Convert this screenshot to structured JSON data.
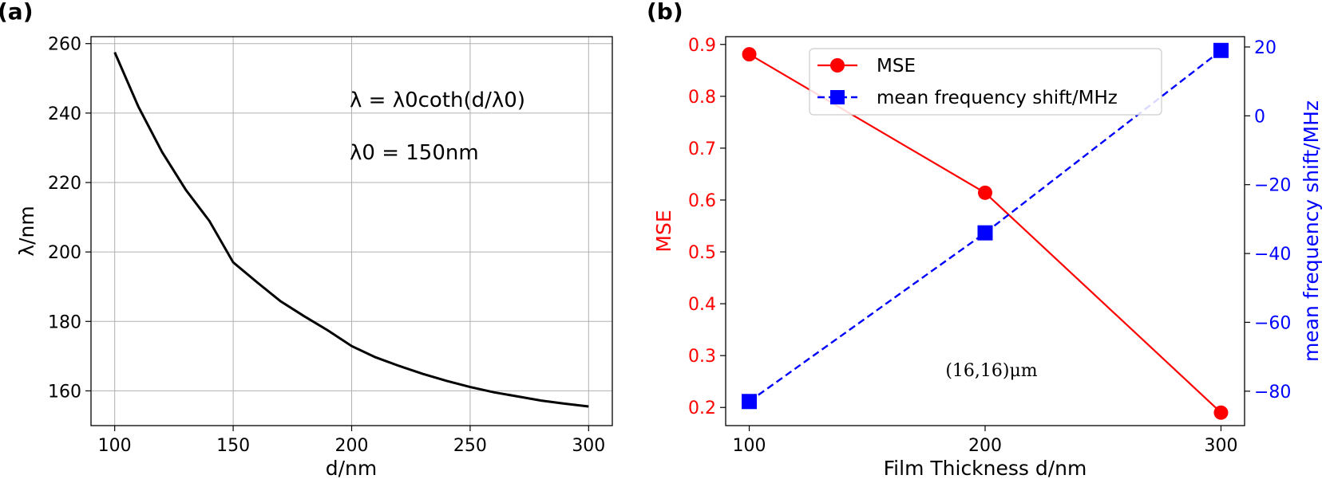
{
  "chart_data": [
    {
      "panel_label": "(a)",
      "type": "line",
      "xlabel": "d/nm",
      "ylabel": "λ/nm",
      "xlim": [
        90,
        310
      ],
      "ylim": [
        150,
        262
      ],
      "xticks": [
        100,
        150,
        200,
        250,
        300
      ],
      "yticks": [
        160,
        180,
        200,
        220,
        240,
        260
      ],
      "grid": true,
      "series": [
        {
          "name": "λ = λ0·coth(d/λ0)",
          "color": "#000000",
          "x": [
            100,
            110,
            120,
            130,
            140,
            150,
            160,
            170,
            180,
            190,
            200,
            210,
            220,
            230,
            240,
            250,
            260,
            270,
            280,
            290,
            300
          ],
          "y": [
            257.5,
            241.8,
            228.8,
            217.9,
            208.9,
            197.0,
            191.3,
            185.8,
            181.5,
            177.4,
            172.9,
            169.7,
            167.2,
            164.9,
            162.9,
            161.1,
            159.6,
            158.4,
            157.2,
            156.3,
            155.5
          ]
        }
      ],
      "annotations": [
        {
          "label": "λ = λ0coth(d/λ0)"
        },
        {
          "label": "λ0 = 150nm"
        }
      ]
    },
    {
      "panel_label": "(b)",
      "type": "line",
      "xlabel": "Film Thickness d/nm",
      "ylabel": "MSE",
      "ylabel_right": "mean frequency shift/MHz",
      "x": [
        100,
        200,
        300
      ],
      "xlim": [
        90,
        310
      ],
      "xticks": [
        100,
        200,
        300
      ],
      "ylim": [
        0.165,
        0.915
      ],
      "yticks": [
        0.2,
        0.3,
        0.4,
        0.5,
        0.6,
        0.7,
        0.8,
        0.9
      ],
      "ylim_right": [
        -90,
        23
      ],
      "yticks_right": [
        -80,
        -60,
        -40,
        -20,
        0,
        20
      ],
      "grid": false,
      "series": [
        {
          "name": "MSE",
          "axis": "left",
          "color": "#ff0000",
          "marker": "circle",
          "linestyle": "solid",
          "values": [
            0.881,
            0.614,
            0.19
          ]
        },
        {
          "name": "mean frequency shift/MHz",
          "axis": "right",
          "color": "#0000ff",
          "marker": "square",
          "linestyle": "dashed",
          "values": [
            -83,
            -34,
            19
          ]
        }
      ],
      "legend": {
        "placement": "top-center",
        "entries": [
          "MSE",
          "mean frequency shift/MHz"
        ]
      },
      "annotation": "(16,16)μm"
    }
  ]
}
